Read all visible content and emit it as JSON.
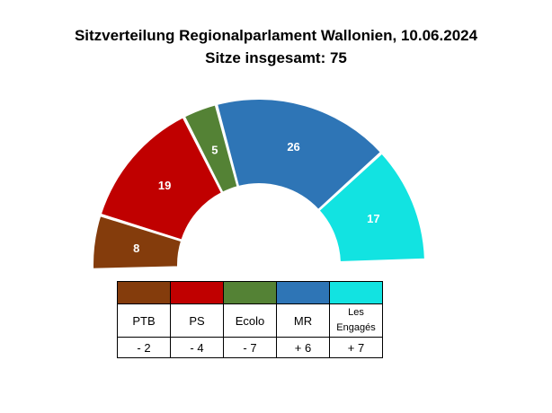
{
  "title": "Sitzverteilung Regionalparlament Wallonien, 10.06.2024",
  "subtitle": "Sitze insgesamt: 75",
  "chart_data": {
    "type": "pie",
    "variant": "parliament-semicircle",
    "total": 75,
    "slices": [
      {
        "party": "PTB",
        "seats": 8,
        "color": "#843c0c",
        "change": "- 2"
      },
      {
        "party": "PS",
        "seats": 19,
        "color": "#c00000",
        "change": "- 4"
      },
      {
        "party": "Ecolo",
        "seats": 5,
        "color": "#548235",
        "change": "- 7"
      },
      {
        "party": "MR",
        "seats": 26,
        "color": "#2e75b6",
        "change": "+ 6"
      },
      {
        "party": "Les Engagés",
        "seats": 17,
        "color": "#12e3e1",
        "change": "+ 7"
      }
    ]
  }
}
